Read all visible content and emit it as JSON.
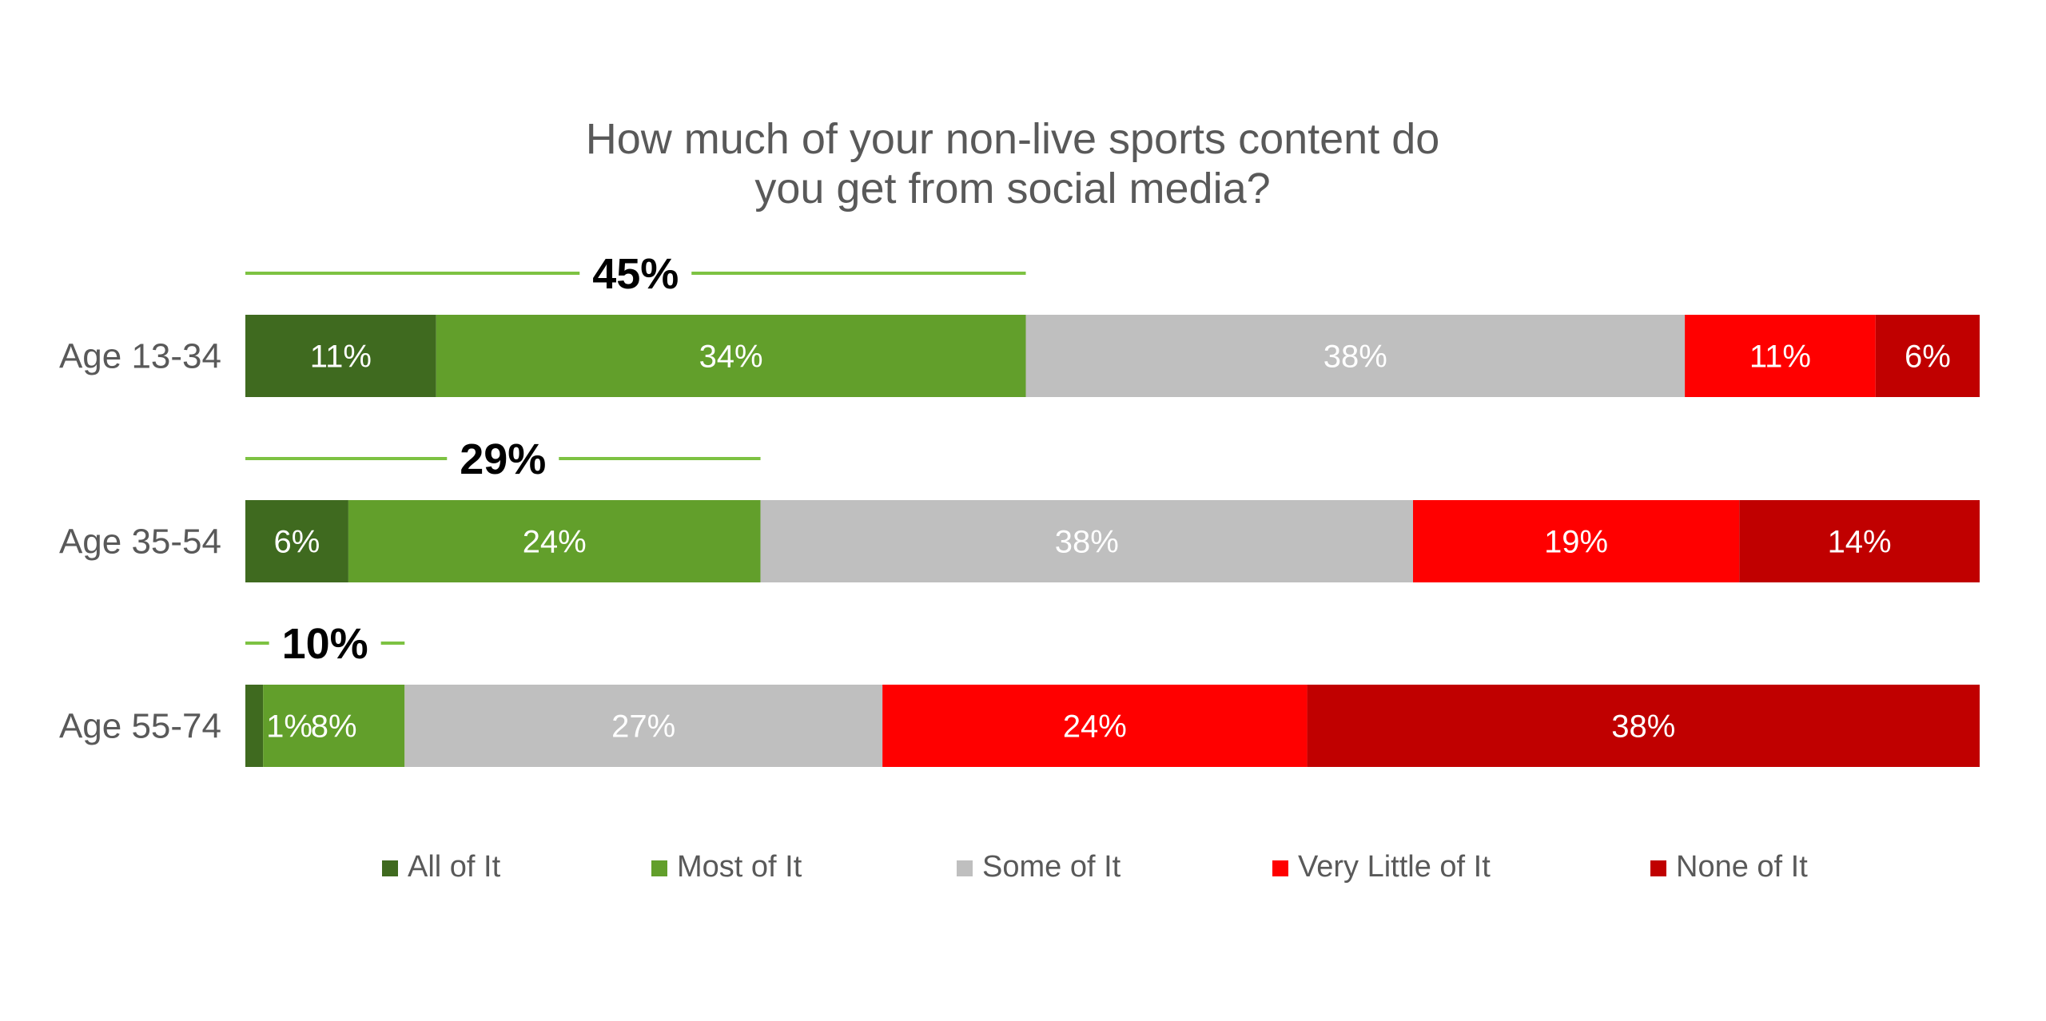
{
  "chart_data": {
    "type": "bar",
    "orientation": "horizontal",
    "stacked": true,
    "title_lines": [
      "How much of your non-live sports content do",
      "you get from social media?"
    ],
    "categories": [
      "Age 13-34",
      "Age 35-54",
      "Age 55-74"
    ],
    "series": [
      {
        "name": "All of It",
        "color": "#3f6a1f",
        "values": [
          11,
          6,
          1
        ],
        "labels": [
          "11%",
          "6%",
          "1%"
        ]
      },
      {
        "name": "Most of It",
        "color": "#629f2b",
        "values": [
          34,
          24,
          8
        ],
        "labels": [
          "34%",
          "24%",
          "8%"
        ]
      },
      {
        "name": "Some of It",
        "color": "#bfbfbf",
        "values": [
          38,
          38,
          27
        ],
        "labels": [
          "38%",
          "38%",
          "27%"
        ]
      },
      {
        "name": "Very Little of It",
        "color": "#ff0000",
        "values": [
          11,
          19,
          24
        ],
        "labels": [
          "11%",
          "19%",
          "24%"
        ]
      },
      {
        "name": "None of It",
        "color": "#c00000",
        "values": [
          6,
          14,
          38
        ],
        "labels": [
          "6%",
          "14%",
          "38%"
        ]
      }
    ],
    "callouts": [
      {
        "category": "Age 13-34",
        "value": 45,
        "label": "45%"
      },
      {
        "category": "Age 35-54",
        "value": 29,
        "label": "29%"
      },
      {
        "category": "Age 55-74",
        "value": 10,
        "label": "10%"
      }
    ],
    "callout_color": "#7dc242",
    "legend_position": "bottom",
    "grid": false
  }
}
